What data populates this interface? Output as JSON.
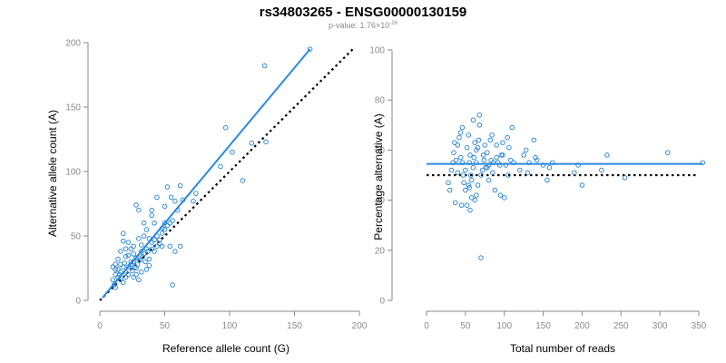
{
  "title": "rs34803265 - ENSG00000130159",
  "subtitle": {
    "prefix": "p-value: 1.76×10",
    "exponent": "-16"
  },
  "colors": {
    "points": "#1f80d0",
    "fit_line": "#2a8ae0",
    "reference_line": "#000000",
    "axis": "#8a8a8a"
  },
  "chart_data": [
    {
      "type": "scatter",
      "title": "",
      "xlabel": "Reference allele count (G)",
      "ylabel": "Alternative allele count (A)",
      "xlim": [
        0,
        200
      ],
      "ylim": [
        0,
        200
      ],
      "xticks": [
        0,
        50,
        100,
        150,
        200
      ],
      "yticks": [
        0,
        50,
        100,
        150,
        200
      ],
      "fit_line": {
        "x": [
          2,
          162
        ],
        "y": [
          2,
          195
        ]
      },
      "reference_line": {
        "x": [
          0,
          195
        ],
        "y": [
          0,
          195
        ]
      },
      "points": [
        [
          162,
          195
        ],
        [
          127,
          182
        ],
        [
          97,
          134
        ],
        [
          117,
          122
        ],
        [
          128,
          123
        ],
        [
          102,
          115
        ],
        [
          110,
          93
        ],
        [
          93,
          104
        ],
        [
          72,
          77
        ],
        [
          74,
          83
        ],
        [
          62,
          89
        ],
        [
          64,
          78
        ],
        [
          58,
          77
        ],
        [
          55,
          80
        ],
        [
          60,
          70
        ],
        [
          52,
          88
        ],
        [
          44,
          80
        ],
        [
          40,
          70
        ],
        [
          50,
          73
        ],
        [
          50,
          60
        ],
        [
          48,
          56
        ],
        [
          42,
          60
        ],
        [
          40,
          66
        ],
        [
          36,
          55
        ],
        [
          30,
          70
        ],
        [
          28,
          74
        ],
        [
          34,
          50
        ],
        [
          30,
          48
        ],
        [
          26,
          42
        ],
        [
          22,
          45
        ],
        [
          24,
          40
        ],
        [
          26,
          36
        ],
        [
          20,
          40
        ],
        [
          22,
          35
        ],
        [
          18,
          52
        ],
        [
          18,
          46
        ],
        [
          16,
          38
        ],
        [
          14,
          32
        ],
        [
          16,
          28
        ],
        [
          12,
          28
        ],
        [
          12,
          24
        ],
        [
          12,
          20
        ],
        [
          14,
          18
        ],
        [
          10,
          16
        ],
        [
          11,
          12
        ],
        [
          12,
          10
        ],
        [
          16,
          16
        ],
        [
          18,
          14
        ],
        [
          20,
          22
        ],
        [
          22,
          26
        ],
        [
          24,
          28
        ],
        [
          26,
          30
        ],
        [
          28,
          25
        ],
        [
          30,
          33
        ],
        [
          32,
          38
        ],
        [
          34,
          36
        ],
        [
          36,
          40
        ],
        [
          38,
          32
        ],
        [
          40,
          45
        ],
        [
          42,
          47
        ],
        [
          44,
          50
        ],
        [
          46,
          44
        ],
        [
          48,
          42
        ],
        [
          36,
          24
        ],
        [
          32,
          22
        ],
        [
          28,
          20
        ],
        [
          26,
          18
        ],
        [
          30,
          16
        ],
        [
          38,
          27
        ],
        [
          54,
          42
        ],
        [
          58,
          38
        ],
        [
          62,
          42
        ],
        [
          56,
          12
        ],
        [
          20,
          34
        ],
        [
          24,
          30
        ],
        [
          10,
          26
        ],
        [
          14,
          24
        ],
        [
          16,
          22
        ],
        [
          18,
          26
        ],
        [
          20,
          18
        ],
        [
          22,
          20
        ],
        [
          25,
          23
        ],
        [
          27,
          26
        ],
        [
          29,
          28
        ],
        [
          31,
          31
        ],
        [
          33,
          34
        ],
        [
          35,
          30
        ],
        [
          37,
          38
        ],
        [
          40,
          40
        ],
        [
          42,
          38
        ],
        [
          44,
          42
        ],
        [
          46,
          47
        ],
        [
          48,
          52
        ],
        [
          50,
          55
        ],
        [
          52,
          58
        ],
        [
          54,
          60
        ],
        [
          56,
          62
        ],
        [
          38,
          48
        ],
        [
          34,
          60
        ],
        [
          32,
          43
        ],
        [
          28,
          33
        ],
        [
          19,
          29
        ],
        [
          15,
          20
        ]
      ]
    },
    {
      "type": "scatter",
      "title": "",
      "xlabel": "Total number of reads",
      "ylabel": "Percentage alternative (A)",
      "xlim": [
        0,
        350
      ],
      "ylim": [
        0,
        100
      ],
      "xticks": [
        0,
        50,
        100,
        150,
        200,
        250,
        300,
        350
      ],
      "yticks": [
        0,
        20,
        40,
        60,
        80,
        100
      ],
      "fit_line": {
        "x": [
          0,
          355
        ],
        "y": [
          54.5,
          54.5
        ]
      },
      "reference_line": {
        "x": [
          0,
          350
        ],
        "y": [
          50,
          50
        ]
      },
      "points": [
        [
          28,
          47
        ],
        [
          30,
          44
        ],
        [
          32,
          52
        ],
        [
          34,
          55
        ],
        [
          35,
          59
        ],
        [
          36,
          63
        ],
        [
          37,
          39
        ],
        [
          38,
          56
        ],
        [
          40,
          62
        ],
        [
          40,
          51
        ],
        [
          42,
          65
        ],
        [
          44,
          67
        ],
        [
          44,
          57
        ],
        [
          46,
          69
        ],
        [
          46,
          55
        ],
        [
          47,
          50
        ],
        [
          48,
          47
        ],
        [
          50,
          52
        ],
        [
          50,
          44
        ],
        [
          52,
          38
        ],
        [
          52,
          61
        ],
        [
          54,
          66
        ],
        [
          55,
          55
        ],
        [
          55,
          45
        ],
        [
          56,
          58
        ],
        [
          57,
          50
        ],
        [
          58,
          48
        ],
        [
          58,
          41
        ],
        [
          60,
          72
        ],
        [
          60,
          53
        ],
        [
          61,
          57
        ],
        [
          62,
          40
        ],
        [
          62,
          63
        ],
        [
          64,
          60
        ],
        [
          64,
          55
        ],
        [
          66,
          61
        ],
        [
          67,
          64
        ],
        [
          68,
          70
        ],
        [
          68,
          74
        ],
        [
          70,
          50
        ],
        [
          70,
          17
        ],
        [
          72,
          52
        ],
        [
          73,
          58
        ],
        [
          74,
          56
        ],
        [
          75,
          62
        ],
        [
          76,
          53
        ],
        [
          78,
          59
        ],
        [
          80,
          48
        ],
        [
          80,
          54
        ],
        [
          82,
          64
        ],
        [
          84,
          66
        ],
        [
          85,
          51
        ],
        [
          86,
          55
        ],
        [
          88,
          44
        ],
        [
          90,
          62
        ],
        [
          90,
          57
        ],
        [
          92,
          55
        ],
        [
          94,
          54
        ],
        [
          95,
          42
        ],
        [
          98,
          63
        ],
        [
          98,
          58
        ],
        [
          100,
          41
        ],
        [
          102,
          54
        ],
        [
          104,
          65
        ],
        [
          105,
          50
        ],
        [
          106,
          61
        ],
        [
          108,
          56
        ],
        [
          110,
          69
        ],
        [
          112,
          55
        ],
        [
          120,
          52
        ],
        [
          125,
          58
        ],
        [
          128,
          60
        ],
        [
          130,
          51
        ],
        [
          132,
          55
        ],
        [
          138,
          64
        ],
        [
          140,
          57
        ],
        [
          142,
          56
        ],
        [
          150,
          54
        ],
        [
          155,
          48
        ],
        [
          158,
          53
        ],
        [
          162,
          55
        ],
        [
          190,
          51
        ],
        [
          195,
          54
        ],
        [
          200,
          46
        ],
        [
          225,
          52
        ],
        [
          232,
          58
        ],
        [
          255,
          49
        ],
        [
          310,
          59
        ],
        [
          355,
          55
        ],
        [
          66,
          46
        ],
        [
          56,
          36
        ],
        [
          45,
          38
        ],
        [
          78,
          53
        ],
        [
          83,
          56
        ],
        [
          96,
          58
        ],
        [
          54,
          46
        ],
        [
          64,
          42
        ]
      ]
    }
  ]
}
